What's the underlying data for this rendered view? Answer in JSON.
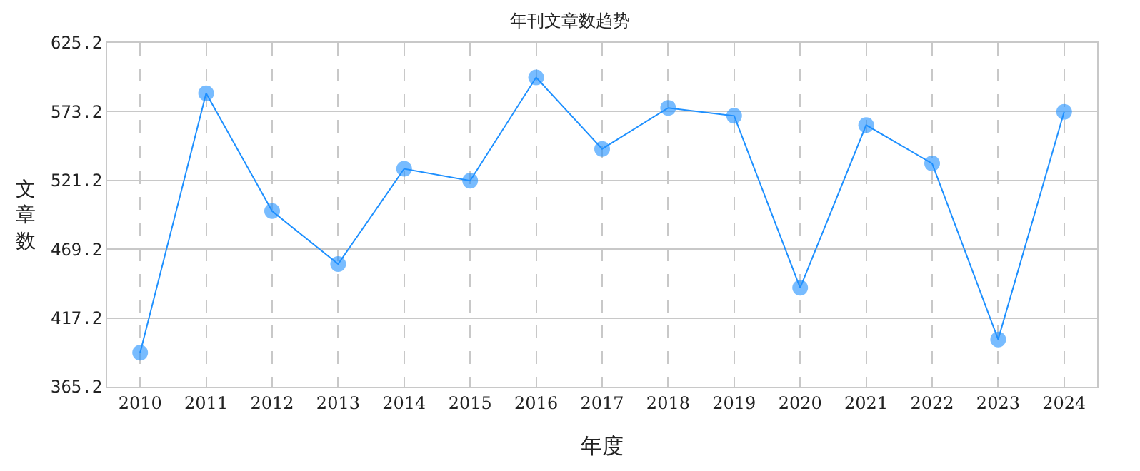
{
  "chart_data": {
    "type": "line",
    "title": "年刊文章数趋势",
    "xlabel": "年度",
    "ylabel": "文章数",
    "categories": [
      "2010",
      "2011",
      "2012",
      "2013",
      "2014",
      "2015",
      "2016",
      "2017",
      "2018",
      "2019",
      "2020",
      "2021",
      "2022",
      "2023",
      "2024"
    ],
    "series": [
      {
        "color": "#1e90ff",
        "values": [
          391,
          587,
          498,
          458,
          530,
          521,
          599,
          545,
          576,
          570,
          440,
          563,
          534,
          401,
          573
        ]
      }
    ],
    "ylim": [
      365.2,
      625.2
    ],
    "yticks": [
      365.2,
      417.2,
      469.2,
      521.2,
      573.2,
      625.2
    ],
    "grid": true,
    "marker": "circle",
    "line_style": "solid",
    "legend": false
  }
}
